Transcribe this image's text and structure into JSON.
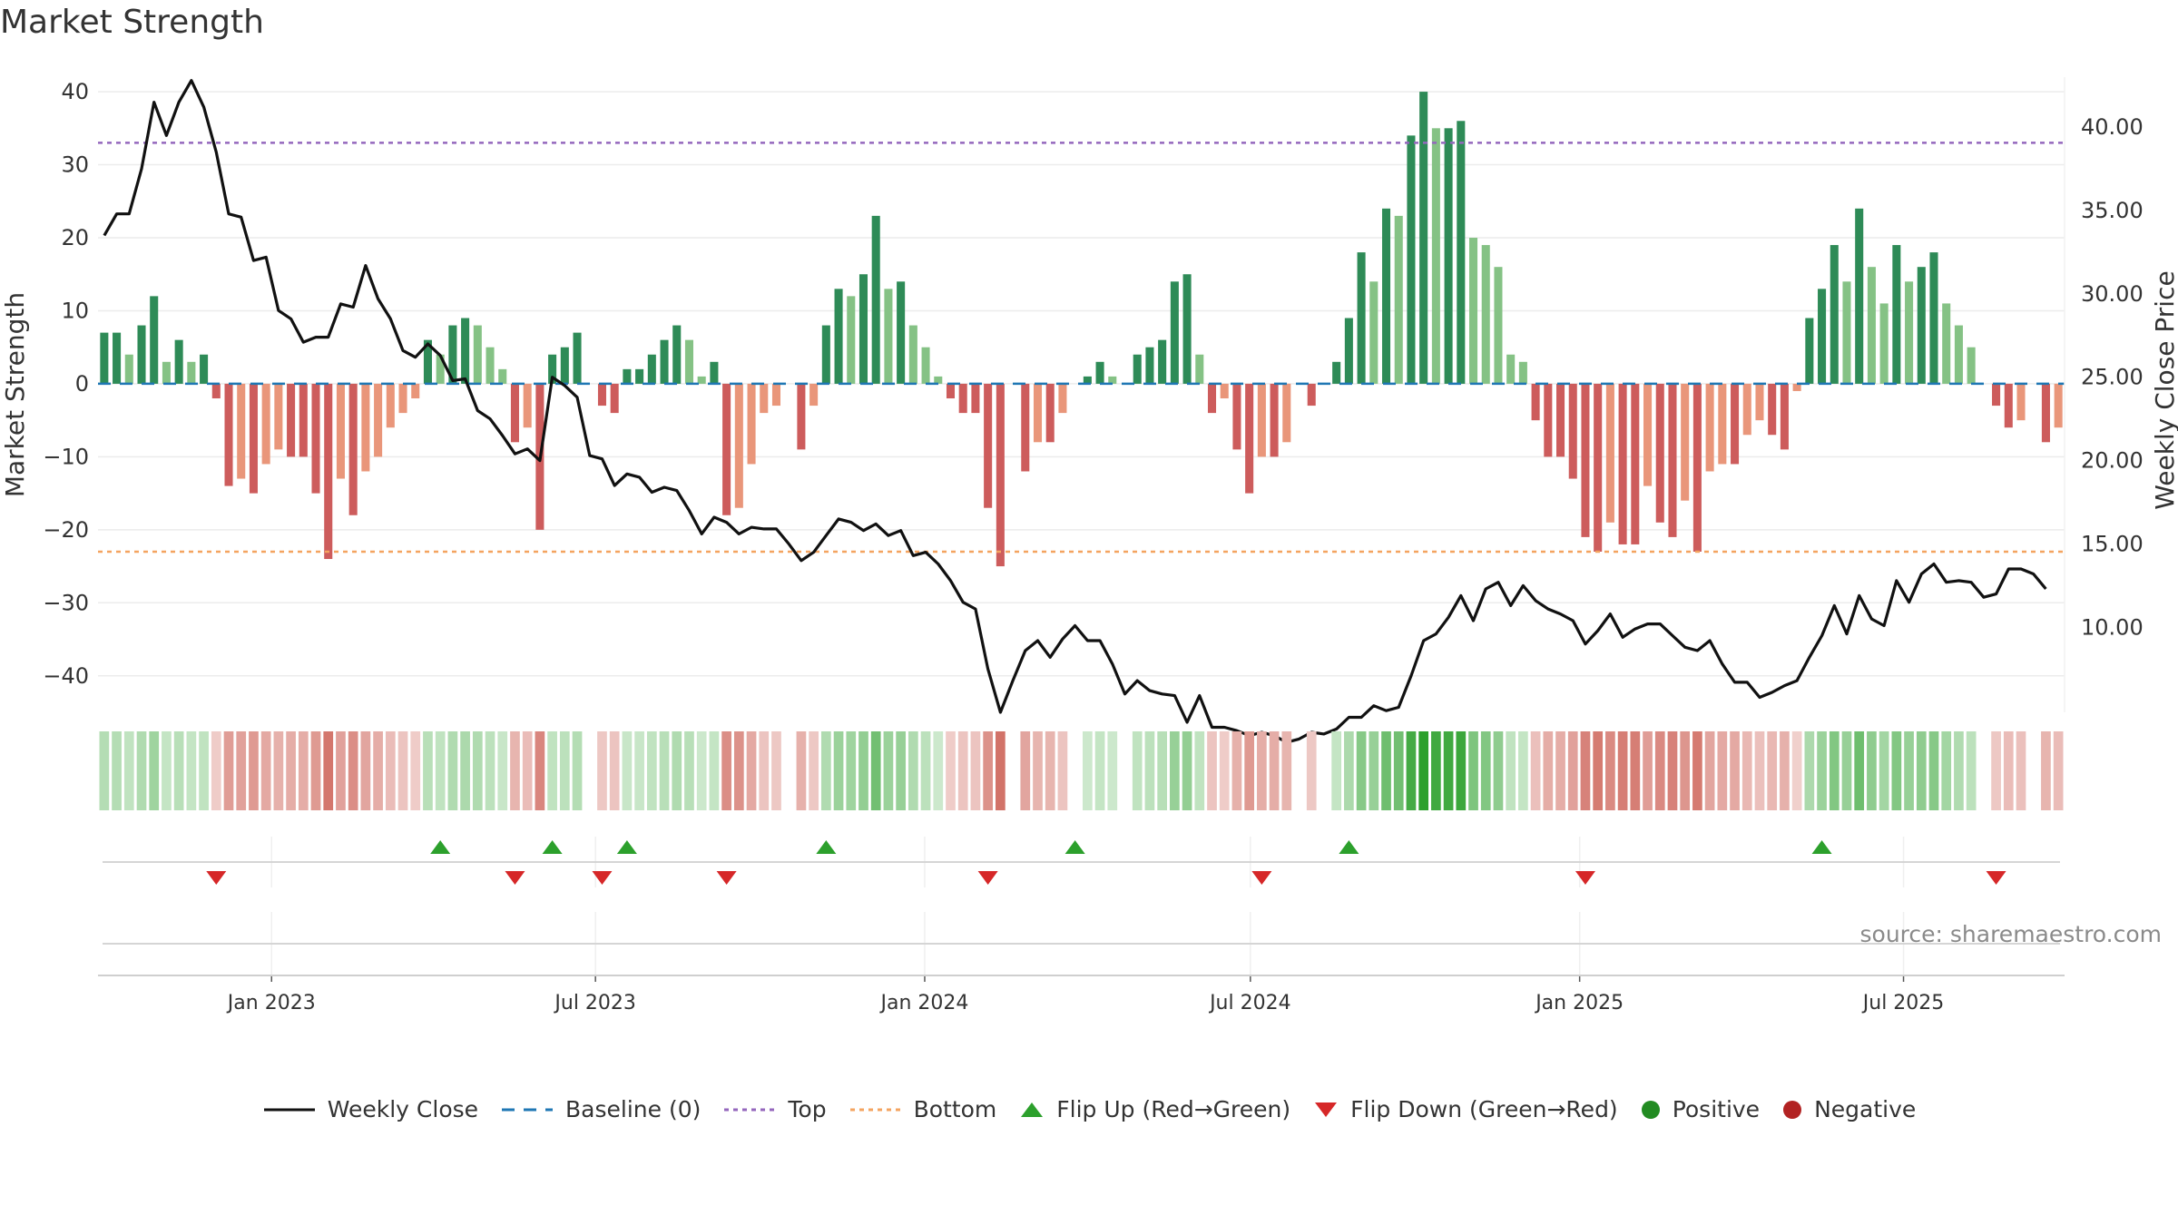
{
  "title": "Market Strength",
  "source_text": "source: sharemaestro.com",
  "colors": {
    "pos_dark": "#2e8b57",
    "pos_light": "#85c285",
    "neg_dark": "#cd5c5c",
    "neg_light": "#e9967a",
    "top_line": "#9467bd",
    "bottom_line": "#f4a460",
    "baseline": "#1f77b4",
    "close_line": "#111111",
    "flip_up": "#2ca02c",
    "flip_down": "#d62728",
    "positive": "#228b22",
    "negative": "#b22222"
  },
  "legend": [
    {
      "key": "close",
      "label": "Weekly Close"
    },
    {
      "key": "baseline",
      "label": "Baseline (0)"
    },
    {
      "key": "top",
      "label": "Top"
    },
    {
      "key": "bottom",
      "label": "Bottom"
    },
    {
      "key": "flip_up",
      "label": "Flip Up (Red→Green)"
    },
    {
      "key": "flip_down",
      "label": "Flip Down (Green→Red)"
    },
    {
      "key": "positive",
      "label": "Positive"
    },
    {
      "key": "negative",
      "label": "Negative"
    }
  ],
  "chart_data": {
    "type": "bar",
    "ylabel": "Market Strength",
    "y2label": "Weekly Close Price",
    "ylim": [
      -45,
      42
    ],
    "y2lim": [
      4.9,
      43.0
    ],
    "yticks": [
      40,
      30,
      20,
      10,
      0,
      -10,
      -20,
      -30,
      -40
    ],
    "ytick_labels": [
      "40",
      "30",
      "20",
      "10",
      "0",
      "−10",
      "−20",
      "−30",
      "−40"
    ],
    "y2ticks": [
      40,
      35,
      30,
      25,
      20,
      15,
      10
    ],
    "y2tick_labels": [
      "40.00",
      "35.00",
      "30.00",
      "25.00",
      "20.00",
      "15.00",
      "10.00"
    ],
    "x_start": "2022-09-26",
    "x_end": "2025-09-29",
    "xticks": [
      "2023-01-01",
      "2023-07-01",
      "2024-01-01",
      "2024-07-01",
      "2025-01-01",
      "2025-07-01"
    ],
    "xtick_labels": [
      "Jan 2023",
      "Jul 2023",
      "Jan 2024",
      "Jul 2024",
      "Jan 2025",
      "Jul 2025"
    ],
    "top_level": 33,
    "bottom_level": -23,
    "grid": true,
    "strength": [
      7,
      7,
      4,
      8,
      12,
      3,
      6,
      3,
      4,
      -2,
      -14,
      -13,
      -15,
      -11,
      -9,
      -10,
      -10,
      -15,
      -24,
      -13,
      -18,
      -12,
      -10,
      -6,
      -4,
      -2,
      6,
      4,
      8,
      9,
      8,
      5,
      2,
      -8,
      -6,
      -20,
      4,
      5,
      7,
      0,
      -3,
      -4,
      2,
      2,
      4,
      6,
      8,
      6,
      1,
      3,
      -18,
      -17,
      -11,
      -4,
      -3,
      0,
      -9,
      -3,
      8,
      13,
      12,
      15,
      23,
      13,
      14,
      8,
      5,
      1,
      -2,
      -4,
      -4,
      -17,
      -25,
      0,
      -12,
      -8,
      -8,
      -4,
      0,
      1,
      3,
      1,
      0,
      4,
      5,
      6,
      14,
      15,
      4,
      -4,
      -2,
      -9,
      -15,
      -10,
      -10,
      -8,
      0,
      -3,
      0,
      3,
      9,
      18,
      14,
      24,
      23,
      34,
      40,
      35,
      35,
      36,
      20,
      19,
      16,
      4,
      3,
      -5,
      -10,
      -10,
      -13,
      -21,
      -23,
      -19,
      -22,
      -22,
      -14,
      -19,
      -21,
      -16,
      -23,
      -12,
      -11,
      -11,
      -7,
      -5,
      -7,
      -9,
      -1,
      9,
      13,
      19,
      14,
      24,
      16,
      11,
      19,
      14,
      16,
      18,
      11,
      8,
      5,
      0,
      -3,
      -6,
      -5,
      0,
      -8,
      -6
    ],
    "close": [
      33.5,
      34.8,
      34.8,
      37.5,
      41.5,
      39.5,
      41.5,
      42.8,
      41.2,
      38.5,
      34.8,
      34.6,
      32.0,
      32.2,
      29.0,
      28.5,
      27.1,
      27.4,
      27.4,
      29.4,
      29.2,
      31.7,
      29.7,
      28.5,
      26.6,
      26.2,
      27.0,
      26.3,
      24.8,
      24.9,
      23.0,
      22.5,
      21.5,
      20.4,
      20.7,
      20.0,
      25.0,
      24.5,
      23.8,
      20.3,
      20.1,
      18.5,
      19.2,
      19.0,
      18.1,
      18.4,
      18.2,
      17.0,
      15.6,
      16.6,
      16.3,
      15.6,
      16.0,
      15.9,
      15.9,
      15.0,
      14.0,
      14.5,
      15.5,
      16.5,
      16.3,
      15.8,
      16.2,
      15.5,
      15.8,
      14.3,
      14.5,
      13.8,
      12.8,
      11.5,
      11.1,
      7.5,
      4.9,
      6.8,
      8.6,
      9.2,
      8.2,
      9.3,
      10.1,
      9.2,
      9.2,
      7.8,
      6.0,
      6.8,
      6.2,
      6.0,
      5.9,
      4.3,
      5.9,
      4.0,
      4.0,
      3.8,
      3.5,
      3.7,
      3.5,
      3.1,
      3.3,
      3.7,
      3.6,
      3.9,
      4.6,
      4.6,
      5.3,
      5.0,
      5.2,
      7.1,
      9.2,
      9.6,
      10.6,
      11.9,
      10.4,
      12.3,
      12.7,
      11.3,
      12.5,
      11.6,
      11.1,
      10.8,
      10.4,
      9.0,
      9.8,
      10.8,
      9.4,
      9.9,
      10.2,
      10.2,
      9.5,
      8.8,
      8.6,
      9.2,
      7.8,
      6.7,
      6.7,
      5.8,
      6.1,
      6.5,
      6.8,
      8.2,
      9.5,
      11.3,
      9.6,
      11.9,
      10.5,
      10.1,
      12.8,
      11.5,
      13.2,
      13.8,
      12.7,
      12.8,
      12.7,
      11.8,
      12.0,
      13.5,
      13.5,
      13.2,
      12.3
    ]
  },
  "flip_up_weeks": [
    27,
    36,
    42,
    58,
    78,
    100,
    138
  ],
  "flip_down_weeks": [
    9,
    33,
    40,
    50,
    71,
    93,
    119,
    152
  ]
}
